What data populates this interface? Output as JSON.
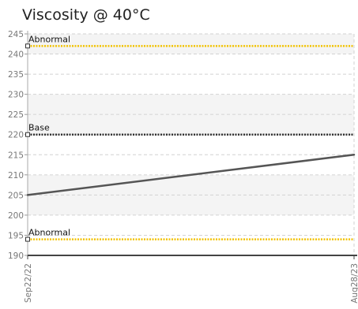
{
  "title": "Viscosity @ 40°C",
  "chart_data": {
    "type": "line",
    "title": "Viscosity @ 40°C",
    "xlabel": "",
    "ylabel": "",
    "x_categories": [
      "Sep22/22",
      "Aug28/23"
    ],
    "ylim": [
      190,
      245
    ],
    "y_ticks": [
      245,
      240,
      235,
      230,
      225,
      220,
      215,
      210,
      205,
      200,
      195,
      190
    ],
    "grid": true,
    "series": [
      {
        "x": [
          "Sep22/22",
          "Aug28/23"
        ],
        "values": [
          205,
          215
        ],
        "color": "#555555"
      }
    ],
    "reference_lines": [
      {
        "label": "Abnormal",
        "value": 242,
        "color": "#f2c200",
        "style": "dotted"
      },
      {
        "label": "Base",
        "value": 220,
        "color": "#333333",
        "style": "dotted"
      },
      {
        "label": "Abnormal",
        "value": 194,
        "color": "#f2c200",
        "style": "dotted"
      }
    ],
    "band_colors": [
      "#ffffff",
      "#f4f4f4"
    ]
  }
}
